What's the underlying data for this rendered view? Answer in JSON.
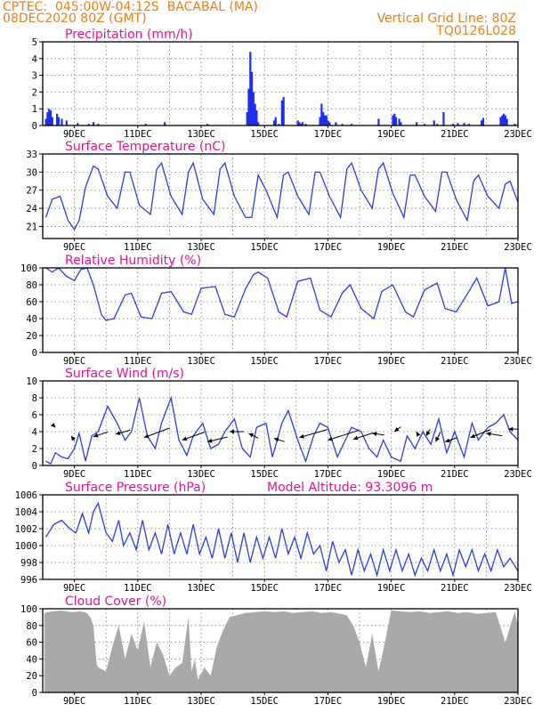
{
  "header": {
    "line1_left": "CPTEC:  045:00W-04:12S  BACABAL (MA)",
    "line2_left": "08DEC2020 80Z (GMT)",
    "line2_right": "Vertical Grid Line: 80Z",
    "line3_right": "TQ0126L028"
  },
  "x_tick_labels": [
    "9DEC",
    "11DEC",
    "13DEC",
    "15DEC",
    "17DEC",
    "19DEC",
    "21DEC",
    "23DEC"
  ],
  "chart_data": [
    {
      "id": "precip",
      "type": "bar",
      "title": "Precipitation (mm/h)",
      "ylim": [
        0,
        5
      ],
      "yticks": [
        0,
        1,
        2,
        3,
        4,
        5
      ],
      "grid": true,
      "x_days": [
        8.1,
        8.15,
        8.2,
        8.25,
        8.3,
        8.45,
        8.5,
        8.6,
        8.75,
        9.1,
        9.45,
        9.6,
        9.75,
        11.25,
        11.85,
        13.2,
        14.45,
        14.5,
        14.55,
        14.6,
        14.65,
        14.7,
        14.75,
        14.8,
        15.3,
        15.35,
        15.45,
        15.55,
        15.6,
        16.05,
        16.1,
        16.15,
        16.2,
        16.3,
        16.75,
        16.8,
        16.85,
        16.9,
        16.95,
        17.0,
        17.05,
        17.25,
        17.45,
        17.75,
        18.6,
        19.05,
        19.1,
        19.15,
        19.25,
        19.3,
        19.8,
        20.05,
        20.35,
        20.45,
        20.65,
        20.95,
        21.1,
        21.3,
        21.45,
        21.85,
        21.9,
        22.45,
        22.5,
        22.55,
        22.6,
        22.65,
        22.9
      ],
      "values": [
        0.4,
        0.8,
        1.0,
        0.9,
        0.5,
        0.7,
        0.5,
        0.4,
        0.3,
        0.15,
        0.1,
        0.2,
        0.1,
        0.1,
        0.2,
        0.1,
        0.8,
        2.2,
        4.4,
        3.2,
        2.0,
        1.3,
        0.9,
        0.2,
        0.3,
        0.5,
        0.1,
        1.5,
        1.7,
        0.3,
        0.2,
        0.1,
        0.2,
        0.1,
        0.5,
        1.3,
        0.8,
        0.6,
        0.6,
        0.3,
        0.2,
        0.2,
        0.1,
        0.1,
        0.4,
        0.6,
        0.7,
        0.5,
        0.4,
        0.2,
        0.2,
        0.1,
        0.3,
        0.1,
        0.8,
        0.1,
        0.15,
        0.15,
        0.1,
        0.3,
        0.45,
        0.5,
        0.6,
        0.7,
        0.6,
        0.4,
        0.1
      ]
    },
    {
      "id": "temp",
      "type": "line",
      "title": "Surface Temperature (nC)",
      "ylim": [
        19,
        33
      ],
      "yticks": [
        21,
        24,
        27,
        30,
        33
      ],
      "grid": true,
      "x_days": [
        8.1,
        8.3,
        8.55,
        8.8,
        9.0,
        9.15,
        9.35,
        9.6,
        9.75,
        10.05,
        10.35,
        10.6,
        10.75,
        11.05,
        11.4,
        11.6,
        11.75,
        12.05,
        12.4,
        12.6,
        12.75,
        13.05,
        13.4,
        13.6,
        13.75,
        14.05,
        14.4,
        14.6,
        14.8,
        15.05,
        15.4,
        15.6,
        15.75,
        16.05,
        16.4,
        16.6,
        16.75,
        17.05,
        17.4,
        17.6,
        17.75,
        18.05,
        18.4,
        18.6,
        18.75,
        19.05,
        19.4,
        19.6,
        19.75,
        20.05,
        20.4,
        20.6,
        20.75,
        21.05,
        21.4,
        21.6,
        21.75,
        22.05,
        22.4,
        22.6,
        22.75,
        23.0
      ],
      "values": [
        22.5,
        25.5,
        26.0,
        22.0,
        20.5,
        22.0,
        27.5,
        31.0,
        30.5,
        26.0,
        24.0,
        30.0,
        30.0,
        24.5,
        23.0,
        30.5,
        31.5,
        26.0,
        23.0,
        30.0,
        31.5,
        25.5,
        23.0,
        30.5,
        31.5,
        26.0,
        22.5,
        22.5,
        29.5,
        27.0,
        22.5,
        29.5,
        30.0,
        26.0,
        23.0,
        30.0,
        30.0,
        26.0,
        22.5,
        30.5,
        31.5,
        27.0,
        24.0,
        30.5,
        31.5,
        26.5,
        22.5,
        29.5,
        29.5,
        26.0,
        23.5,
        30.0,
        30.0,
        25.5,
        22.0,
        28.5,
        29.5,
        26.0,
        24.0,
        28.0,
        28.5,
        25.0
      ]
    },
    {
      "id": "rh",
      "type": "line",
      "title": "Relative Humidity (%)",
      "ylim": [
        0,
        100
      ],
      "yticks": [
        0,
        20,
        40,
        60,
        80,
        100
      ],
      "grid": true,
      "x_days": [
        8.1,
        8.3,
        8.5,
        8.75,
        9.0,
        9.2,
        9.4,
        9.6,
        9.85,
        10.0,
        10.25,
        10.6,
        10.8,
        11.1,
        11.45,
        11.75,
        12.05,
        12.45,
        12.7,
        13.0,
        13.45,
        13.75,
        14.05,
        14.4,
        14.65,
        14.8,
        15.1,
        15.45,
        15.7,
        16.05,
        16.45,
        16.75,
        17.1,
        17.45,
        17.7,
        18.05,
        18.45,
        18.7,
        19.05,
        19.45,
        19.7,
        20.05,
        20.45,
        20.7,
        21.05,
        21.45,
        21.7,
        22.05,
        22.4,
        22.6,
        22.8,
        23.0
      ],
      "values": [
        100,
        95,
        100,
        90,
        85,
        98,
        100,
        80,
        45,
        38,
        40,
        68,
        70,
        42,
        40,
        70,
        72,
        48,
        45,
        76,
        78,
        45,
        42,
        75,
        92,
        95,
        88,
        48,
        42,
        84,
        88,
        50,
        42,
        70,
        80,
        52,
        40,
        72,
        80,
        48,
        42,
        74,
        82,
        52,
        48,
        72,
        88,
        55,
        60,
        100,
        58,
        60
      ]
    },
    {
      "id": "wind",
      "type": "line",
      "title": "Surface Wind (m/s)",
      "ylim": [
        0,
        10
      ],
      "yticks": [
        0,
        2,
        4,
        6,
        8,
        10
      ],
      "grid": true,
      "x_days": [
        8.1,
        8.25,
        8.4,
        8.6,
        8.8,
        9.0,
        9.15,
        9.35,
        9.55,
        9.75,
        10.05,
        10.35,
        10.6,
        10.8,
        11.05,
        11.3,
        11.55,
        11.75,
        12.05,
        12.3,
        12.55,
        12.75,
        13.05,
        13.3,
        13.55,
        13.75,
        14.05,
        14.3,
        14.55,
        14.75,
        15.05,
        15.25,
        15.55,
        15.75,
        16.05,
        16.3,
        16.55,
        16.75,
        17.0,
        17.3,
        17.55,
        17.75,
        18.05,
        18.3,
        18.55,
        18.75,
        19.0,
        19.3,
        19.5,
        19.75,
        20.0,
        20.25,
        20.5,
        20.75,
        21.0,
        21.3,
        21.55,
        21.75,
        22.05,
        22.3,
        22.55,
        22.75,
        23.0
      ],
      "values": [
        0.5,
        0.2,
        1.5,
        1.0,
        0.8,
        2.0,
        3.8,
        0.5,
        3.5,
        4.0,
        7.0,
        5.0,
        3.0,
        4.0,
        8.0,
        3.5,
        2.0,
        5.0,
        8.0,
        3.0,
        1.2,
        3.5,
        5.0,
        2.0,
        2.5,
        4.0,
        5.5,
        2.0,
        1.0,
        4.5,
        5.0,
        1.0,
        5.0,
        6.5,
        3.0,
        0.5,
        3.5,
        5.0,
        4.5,
        1.0,
        3.0,
        4.5,
        4.0,
        2.0,
        1.0,
        3.0,
        1.0,
        0.5,
        3.5,
        2.0,
        4.0,
        2.5,
        5.5,
        1.5,
        4.0,
        1.0,
        5.0,
        3.0,
        4.5,
        5.0,
        6.0,
        4.0,
        3.0
      ]
    },
    {
      "id": "pressure",
      "type": "line",
      "title": "Surface Pressure (hPa)",
      "annotation": "Model Altitude: 93.3096 m",
      "ylim": [
        996,
        1006
      ],
      "yticks": [
        996,
        998,
        1000,
        1002,
        1004,
        1006
      ],
      "grid": true,
      "x_days": [
        8.1,
        8.35,
        8.6,
        8.85,
        9.05,
        9.25,
        9.45,
        9.6,
        9.75,
        10.0,
        10.2,
        10.4,
        10.55,
        10.75,
        10.95,
        11.15,
        11.35,
        11.55,
        11.75,
        11.95,
        12.15,
        12.35,
        12.55,
        12.75,
        12.95,
        13.15,
        13.35,
        13.55,
        13.75,
        13.95,
        14.15,
        14.35,
        14.55,
        14.75,
        14.95,
        15.15,
        15.35,
        15.55,
        15.75,
        15.95,
        16.15,
        16.35,
        16.55,
        16.75,
        16.95,
        17.15,
        17.35,
        17.55,
        17.75,
        17.95,
        18.15,
        18.35,
        18.55,
        18.75,
        18.95,
        19.15,
        19.35,
        19.55,
        19.75,
        19.95,
        20.15,
        20.35,
        20.55,
        20.75,
        20.95,
        21.15,
        21.35,
        21.55,
        21.75,
        21.95,
        22.15,
        22.35,
        22.55,
        22.75,
        23.0
      ],
      "values": [
        1001.0,
        1002.5,
        1003.0,
        1002.0,
        1001.5,
        1003.8,
        1001.5,
        1004.0,
        1005.0,
        1001.5,
        1000.5,
        1003.0,
        1000.0,
        1001.5,
        999.5,
        1003.0,
        999.5,
        1001.5,
        999.0,
        1002.5,
        999.0,
        1001.5,
        999.0,
        1002.5,
        999.0,
        1001.0,
        998.5,
        1002.0,
        998.5,
        1001.5,
        998.0,
        1001.5,
        998.0,
        1001.0,
        998.5,
        1001.0,
        998.5,
        1002.0,
        999.0,
        1001.0,
        998.5,
        1001.5,
        999.0,
        1000.0,
        997.0,
        1000.5,
        998.0,
        999.5,
        996.5,
        999.5,
        997.0,
        999.0,
        996.5,
        999.5,
        997.0,
        999.5,
        997.0,
        999.0,
        996.5,
        998.5,
        997.0,
        999.5,
        997.0,
        999.0,
        996.5,
        999.5,
        997.5,
        999.5,
        997.0,
        999.0,
        997.0,
        999.5,
        997.5,
        998.5,
        997.0
      ]
    },
    {
      "id": "cloud",
      "type": "area",
      "title": "Cloud Cover (%)",
      "ylim": [
        0,
        100
      ],
      "yticks": [
        0,
        20,
        40,
        60,
        80,
        100
      ],
      "grid": true,
      "x_days": [
        8.05,
        8.3,
        8.6,
        8.9,
        9.2,
        9.4,
        9.5,
        9.6,
        9.7,
        9.75,
        10.0,
        10.2,
        10.4,
        10.6,
        10.8,
        11.0,
        11.2,
        11.4,
        11.6,
        11.8,
        12.0,
        12.2,
        12.4,
        12.6,
        12.7,
        12.8,
        12.9,
        13.1,
        13.3,
        13.5,
        13.7,
        13.9,
        14.1,
        14.4,
        14.7,
        15.0,
        15.3,
        15.6,
        15.9,
        16.2,
        16.5,
        16.8,
        17.1,
        17.4,
        17.6,
        17.8,
        18.0,
        18.2,
        18.4,
        18.6,
        18.8,
        19.0,
        19.3,
        19.6,
        19.9,
        20.2,
        20.5,
        20.8,
        21.1,
        21.4,
        21.7,
        22.0,
        22.3,
        22.6,
        22.9,
        23.0
      ],
      "values": [
        95,
        97,
        98,
        96,
        97,
        95,
        90,
        80,
        35,
        30,
        25,
        55,
        80,
        40,
        70,
        50,
        85,
        30,
        60,
        45,
        20,
        30,
        35,
        90,
        25,
        40,
        15,
        30,
        20,
        55,
        75,
        90,
        92,
        95,
        96,
        97,
        96,
        97,
        95,
        96,
        97,
        95,
        96,
        94,
        92,
        80,
        60,
        30,
        70,
        25,
        60,
        98,
        97,
        96,
        97,
        95,
        96,
        97,
        95,
        96,
        94,
        95,
        96,
        60,
        97,
        80
      ]
    },
    {
      "id": "wind_vectors",
      "type": "scatter",
      "title": "",
      "x_days": [
        8.4,
        8.9,
        9.6,
        10.3,
        11.2,
        12.4,
        13.2,
        13.9,
        14.5,
        15.3,
        16.1,
        17.0,
        17.8,
        18.4,
        19.1,
        19.8,
        20.1,
        20.4,
        20.7,
        21.5,
        22.0,
        22.7
      ],
      "u": [
        -0.3,
        0.4,
        1.8,
        1.8,
        3.2,
        2.8,
        2.5,
        1.8,
        1.2,
        1.3,
        3.5,
        3.8,
        2.5,
        1.5,
        0.8,
        0.2,
        0.5,
        0.6,
        1.5,
        2.5,
        2.0,
        1.2
      ],
      "v": [
        0.3,
        -0.6,
        0.6,
        0.5,
        1.2,
        1.0,
        0.6,
        0.0,
        -0.6,
        -0.4,
        1.0,
        1.2,
        0.8,
        -0.2,
        0.6,
        -0.4,
        0.8,
        1.2,
        0.5,
        1.0,
        -0.3,
        0.0
      ],
      "y_pos": [
        4.5,
        3.5,
        3.4,
        3.7,
        3.3,
        3.0,
        2.8,
        4.0,
        3.8,
        3.2,
        3.3,
        3.0,
        3.1,
        3.8,
        4.0,
        4.0,
        3.5,
        2.8,
        2.8,
        3.3,
        3.8,
        4.3
      ]
    }
  ]
}
